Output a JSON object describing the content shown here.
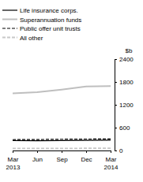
{
  "chart_data": {
    "type": "line",
    "y_label": "$b",
    "categories": [
      "Mar 2013",
      "Jun",
      "Sep",
      "Dec",
      "Mar 2014"
    ],
    "series": [
      {
        "name": "Life insurance corps.",
        "color": "#000000",
        "line_style": "solid",
        "values": [
          260,
          255,
          262,
          268,
          272
        ]
      },
      {
        "name": "Superannuation funds",
        "color": "#bfbfbf",
        "line_style": "solid",
        "values": [
          1500,
          1530,
          1600,
          1680,
          1690
        ]
      },
      {
        "name": "Public offer unit trusts",
        "color": "#000000",
        "line_style": "dashed",
        "values": [
          285,
          288,
          295,
          300,
          302
        ]
      },
      {
        "name": "All other",
        "color": "#c8c8c8",
        "line_style": "dashed",
        "values": [
          50,
          50,
          52,
          55,
          55
        ]
      }
    ],
    "ylim": [
      0,
      2400
    ],
    "yticks": [
      0,
      600,
      1200,
      1800,
      2400
    ],
    "grid": false,
    "legend": "top-left"
  }
}
